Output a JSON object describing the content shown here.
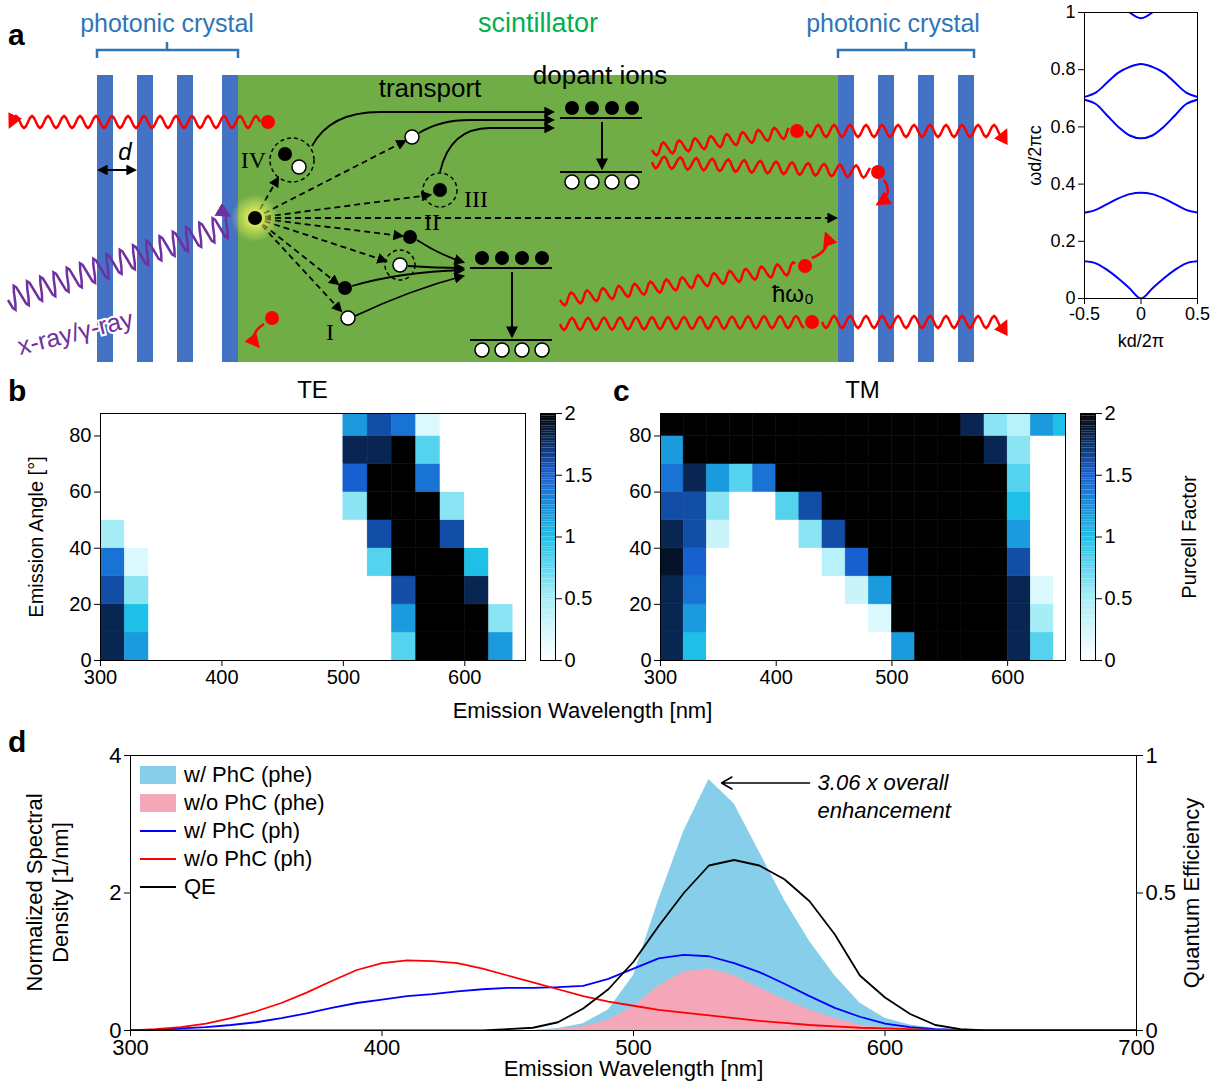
{
  "diagram": {
    "panel": "a",
    "left_label": "photonic crystal",
    "right_label": "photonic crystal",
    "center_label": "scintillator",
    "period_label": "d",
    "source_label": "x-ray/γ-ray",
    "dopant_label": "dopant ions",
    "transport_label": "transport",
    "process_labels": [
      "I",
      "II",
      "III",
      "IV"
    ],
    "photon_label": "ħω₀"
  },
  "chart_data": [
    {
      "type": "line",
      "xlabel": "kd/2π",
      "ylabel": "ωd/2πc",
      "x": [
        -0.5,
        -0.4,
        -0.3,
        -0.2,
        -0.1,
        0,
        0.1,
        0.2,
        0.3,
        0.4,
        0.5
      ],
      "series": [
        {
          "color": "#0000ff",
          "values": [
            0.13,
            0.123,
            0.1,
            0.07,
            0.035,
            0,
            0.035,
            0.07,
            0.1,
            0.123,
            0.13
          ]
        },
        {
          "color": "#0000ff",
          "values": [
            0.3,
            0.31,
            0.33,
            0.35,
            0.365,
            0.37,
            0.365,
            0.35,
            0.33,
            0.31,
            0.3
          ]
        },
        {
          "color": "#0000ff",
          "values": [
            0.695,
            0.68,
            0.64,
            0.6,
            0.57,
            0.56,
            0.57,
            0.6,
            0.64,
            0.68,
            0.695
          ]
        },
        {
          "color": "#0000ff",
          "values": [
            0.705,
            0.72,
            0.755,
            0.79,
            0.81,
            0.82,
            0.81,
            0.79,
            0.755,
            0.72,
            0.705
          ]
        },
        {
          "color": "#0000ff",
          "values": [
            null,
            null,
            null,
            null,
            1.0,
            0.98,
            1.0,
            null,
            null,
            null,
            null
          ]
        }
      ],
      "xlim": [
        -0.5,
        0.5
      ],
      "xticks": [
        -0.5,
        0,
        0.5
      ],
      "ylim": [
        0,
        1
      ],
      "yticks": [
        0,
        0.2,
        0.4,
        0.6,
        0.8,
        1
      ]
    },
    {
      "panel": "b",
      "type": "heatmap",
      "title": "TE",
      "xlabel": "Emission Wavelength [nm]",
      "ylabel": "Emission Angle [°]",
      "x": [
        300,
        320,
        340,
        360,
        380,
        400,
        420,
        440,
        460,
        480,
        500,
        520,
        540,
        560,
        580,
        600,
        620,
        640,
        660
      ],
      "y": [
        0,
        10,
        20,
        30,
        40,
        50,
        60,
        70,
        80,
        90
      ],
      "values": [
        [
          1.8,
          1.2,
          0,
          0,
          0,
          0,
          0,
          0,
          0,
          0,
          0,
          0,
          0.8,
          2,
          2,
          2,
          1.2,
          0
        ],
        [
          1.8,
          1.0,
          0,
          0,
          0,
          0,
          0,
          0,
          0,
          0,
          0,
          0,
          1.2,
          2,
          2,
          2,
          0.6,
          0
        ],
        [
          1.6,
          0.6,
          0,
          0,
          0,
          0,
          0,
          0,
          0,
          0,
          0,
          0,
          1.6,
          2,
          2,
          1.8,
          0,
          0
        ],
        [
          1.4,
          0.2,
          0,
          0,
          0,
          0,
          0,
          0,
          0,
          0,
          0,
          0.8,
          2,
          2,
          2,
          1.0,
          0,
          0
        ],
        [
          0.5,
          0,
          0,
          0,
          0,
          0,
          0,
          0,
          0,
          0,
          0,
          1.6,
          2,
          2,
          1.6,
          0,
          0,
          0
        ],
        [
          0,
          0,
          0,
          0,
          0,
          0,
          0,
          0,
          0,
          0,
          0.6,
          2,
          2,
          2,
          0.6,
          0,
          0,
          0
        ],
        [
          0,
          0,
          0,
          0,
          0,
          0,
          0,
          0,
          0,
          0,
          1.5,
          2,
          2,
          1.4,
          0,
          0,
          0,
          0
        ],
        [
          0,
          0,
          0,
          0,
          0,
          0,
          0,
          0,
          0,
          0,
          1.8,
          1.8,
          2,
          0.8,
          0,
          0,
          0,
          0
        ],
        [
          0,
          0,
          0,
          0,
          0,
          0,
          0,
          0,
          0,
          0,
          1.2,
          1.6,
          1.4,
          0.2,
          0,
          0,
          0,
          0
        ]
      ],
      "xlim": [
        300,
        650
      ],
      "xticks": [
        300,
        400,
        500,
        600
      ],
      "ylim": [
        0,
        88
      ],
      "yticks": [
        0,
        20,
        40,
        60,
        80
      ],
      "colorbar": {
        "range": [
          0,
          2
        ],
        "ticks": [
          0,
          0.5,
          1,
          1.5,
          2
        ]
      }
    },
    {
      "panel": "c",
      "type": "heatmap",
      "title": "TM",
      "x": [
        300,
        320,
        340,
        360,
        380,
        400,
        420,
        440,
        460,
        480,
        500,
        520,
        540,
        560,
        580,
        600,
        620,
        640,
        660
      ],
      "y": [
        0,
        10,
        20,
        30,
        40,
        50,
        60,
        70,
        80,
        90
      ],
      "values": [
        [
          1.8,
          1.0,
          0,
          0,
          0,
          0,
          0,
          0,
          0,
          0,
          1.2,
          2,
          2,
          2,
          2,
          1.8,
          0.8,
          0
        ],
        [
          1.8,
          1.2,
          0,
          0,
          0,
          0,
          0,
          0,
          0,
          0.2,
          2,
          2,
          2,
          2,
          2,
          1.8,
          0.5,
          0
        ],
        [
          1.8,
          1.4,
          0,
          0,
          0,
          0,
          0,
          0,
          0.3,
          1.2,
          2,
          2,
          2,
          2,
          2,
          1.8,
          0.2,
          0
        ],
        [
          1.9,
          1.5,
          0,
          0,
          0,
          0,
          0,
          0.4,
          1.5,
          2,
          2,
          2,
          2,
          2,
          2,
          1.6,
          0,
          0
        ],
        [
          1.8,
          1.6,
          0.3,
          0,
          0,
          0,
          0.6,
          1.6,
          2,
          2,
          2,
          2,
          2,
          2,
          2,
          1.2,
          0,
          0
        ],
        [
          1.6,
          1.6,
          0.6,
          0,
          0,
          0.8,
          1.6,
          2,
          2,
          2,
          2,
          2,
          2,
          2,
          2,
          1.0,
          0,
          0
        ],
        [
          1.4,
          1.8,
          1.2,
          0.8,
          1.4,
          2,
          2,
          2,
          2,
          2,
          2,
          2,
          2,
          2,
          2,
          0.8,
          0,
          0
        ],
        [
          1.2,
          2,
          2,
          2,
          2,
          2,
          2,
          2,
          2,
          2,
          2,
          2,
          2,
          2,
          1.8,
          0.6,
          0,
          0
        ],
        [
          2,
          2,
          2,
          2,
          2,
          2,
          2,
          2,
          2,
          2,
          2,
          2,
          2,
          1.8,
          0.6,
          0.4,
          1.2,
          1.0
        ]
      ],
      "xlim": [
        300,
        650
      ],
      "xticks": [
        300,
        400,
        500,
        600
      ],
      "ylim": [
        0,
        88
      ],
      "yticks": [
        0,
        20,
        40,
        60,
        80
      ],
      "colorbar": {
        "range": [
          0,
          2
        ],
        "ticks": [
          0,
          0.5,
          1,
          1.5,
          2
        ],
        "label": "Purcell Factor"
      }
    },
    {
      "panel": "d",
      "type": "line",
      "xlabel": "Emission Wavelength [nm]",
      "ylabel": "Normalized Spectral Density [1/nm]",
      "y2label": "Quantum Efficiency",
      "x": [
        300,
        310,
        320,
        330,
        340,
        350,
        360,
        370,
        380,
        390,
        400,
        410,
        420,
        430,
        440,
        450,
        460,
        470,
        480,
        490,
        500,
        510,
        520,
        530,
        540,
        550,
        560,
        570,
        580,
        590,
        600,
        610,
        620,
        630,
        640,
        650,
        660,
        670,
        680,
        690,
        700
      ],
      "series": [
        {
          "name": "w/ PhC (phe)",
          "type": "area",
          "color": "#87ceeb",
          "values": [
            0,
            0,
            0,
            0,
            0,
            0,
            0,
            0,
            0,
            0,
            0,
            0,
            0,
            0,
            0,
            0,
            0,
            0.03,
            0.1,
            0.3,
            0.8,
            1.9,
            2.9,
            3.65,
            3.3,
            2.6,
            1.9,
            1.3,
            0.8,
            0.4,
            0.18,
            0.08,
            0.03,
            0.01,
            0,
            0,
            0,
            0,
            0,
            0,
            0
          ]
        },
        {
          "name": "w/o PhC (phe)",
          "type": "area",
          "color": "#f4a7b9",
          "values": [
            0,
            0,
            0,
            0,
            0,
            0,
            0,
            0,
            0,
            0,
            0,
            0,
            0,
            0,
            0,
            0,
            0,
            0.02,
            0.06,
            0.15,
            0.35,
            0.65,
            0.85,
            0.9,
            0.8,
            0.62,
            0.45,
            0.3,
            0.18,
            0.08,
            0.04,
            0.02,
            0.005,
            0,
            0,
            0,
            0,
            0,
            0,
            0,
            0
          ]
        },
        {
          "name": "w/ PhC (ph)",
          "type": "line",
          "color": "#0000ff",
          "values": [
            0,
            0.01,
            0.03,
            0.05,
            0.08,
            0.12,
            0.18,
            0.25,
            0.33,
            0.4,
            0.45,
            0.5,
            0.53,
            0.57,
            0.6,
            0.62,
            0.62,
            0.63,
            0.65,
            0.75,
            0.9,
            1.05,
            1.1,
            1.08,
            0.98,
            0.85,
            0.68,
            0.5,
            0.33,
            0.2,
            0.1,
            0.05,
            0.02,
            0.01,
            0,
            0,
            0,
            0,
            0,
            0,
            0
          ]
        },
        {
          "name": "w/o PhC (ph)",
          "type": "line",
          "color": "#ff0000",
          "values": [
            0,
            0.02,
            0.05,
            0.1,
            0.18,
            0.28,
            0.4,
            0.55,
            0.72,
            0.88,
            0.98,
            1.02,
            1.01,
            0.98,
            0.9,
            0.8,
            0.7,
            0.6,
            0.5,
            0.42,
            0.36,
            0.3,
            0.26,
            0.22,
            0.18,
            0.14,
            0.11,
            0.08,
            0.06,
            0.04,
            0.03,
            0.02,
            0.01,
            0.005,
            0,
            0,
            0,
            0,
            0,
            0,
            0
          ]
        },
        {
          "name": "QE",
          "type": "line",
          "color": "#000000",
          "axis": "y2",
          "values": [
            0,
            0,
            0,
            0,
            0,
            0,
            0,
            0,
            0,
            0,
            0,
            0,
            0,
            0,
            0,
            0.005,
            0.01,
            0.03,
            0.08,
            0.15,
            0.25,
            0.38,
            0.5,
            0.6,
            0.62,
            0.6,
            0.55,
            0.47,
            0.35,
            0.2,
            0.12,
            0.06,
            0.02,
            0.005,
            0,
            0,
            0,
            0,
            0,
            0,
            0
          ]
        }
      ],
      "xlim": [
        300,
        700
      ],
      "xticks": [
        300,
        400,
        500,
        600,
        700
      ],
      "ylim": [
        0,
        4
      ],
      "yticks": [
        0,
        2,
        4
      ],
      "y2lim": [
        0,
        1
      ],
      "y2ticks": [
        0,
        0.5,
        1
      ],
      "legend": "top-left",
      "annotations": [
        {
          "text": "3.06 x overall enhancement",
          "x": 570,
          "y": 3.6,
          "arrow_x": 535
        }
      ]
    }
  ]
}
